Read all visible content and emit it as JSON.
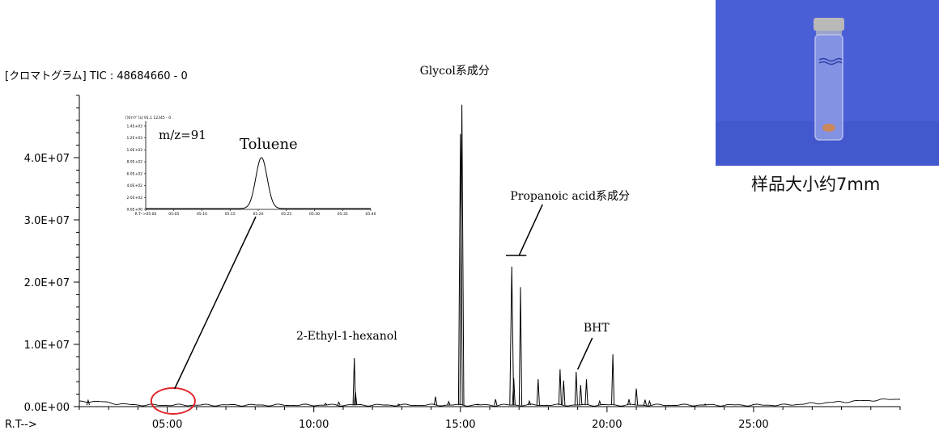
{
  "chart_data": {
    "type": "line",
    "title": "[クロマトグラム] TIC : 48684660 - 0",
    "xlabel": "R.T-->",
    "ylabel": "",
    "xlim": [
      2.0,
      30.0
    ],
    "ylim": [
      0,
      50000000
    ],
    "x_ticks": [
      5,
      10,
      15,
      20,
      25
    ],
    "x_tick_labels": [
      "05:00",
      "10:00",
      "15:00",
      "20:00",
      "25:00"
    ],
    "y_ticks": [
      0,
      10000000,
      20000000,
      30000000,
      40000000
    ],
    "y_tick_labels": [
      "0.0E+00",
      "1.0E+07",
      "2.0E+07",
      "3.0E+07",
      "4.0E+07"
    ],
    "peaks": [
      {
        "rt": 2.3,
        "height": 1000000
      },
      {
        "rt": 10.4,
        "height": 500000
      },
      {
        "rt": 10.85,
        "height": 700000
      },
      {
        "rt": 11.38,
        "height": 7800000
      },
      {
        "rt": 11.42,
        "height": 2400000
      },
      {
        "rt": 12.9,
        "height": 400000
      },
      {
        "rt": 14.15,
        "height": 1600000
      },
      {
        "rt": 14.6,
        "height": 800000
      },
      {
        "rt": 15.0,
        "height": 43800000
      },
      {
        "rt": 15.05,
        "height": 48500000
      },
      {
        "rt": 15.6,
        "height": 400000
      },
      {
        "rt": 16.2,
        "height": 1200000
      },
      {
        "rt": 16.75,
        "height": 22500000
      },
      {
        "rt": 16.82,
        "height": 4600000
      },
      {
        "rt": 17.05,
        "height": 19200000
      },
      {
        "rt": 17.35,
        "height": 900000
      },
      {
        "rt": 17.65,
        "height": 4400000
      },
      {
        "rt": 18.4,
        "height": 6000000
      },
      {
        "rt": 18.52,
        "height": 4200000
      },
      {
        "rt": 18.95,
        "height": 5600000
      },
      {
        "rt": 19.1,
        "height": 3500000
      },
      {
        "rt": 19.3,
        "height": 4400000
      },
      {
        "rt": 19.75,
        "height": 900000
      },
      {
        "rt": 20.2,
        "height": 8400000
      },
      {
        "rt": 20.75,
        "height": 1200000
      },
      {
        "rt": 21.0,
        "height": 2900000
      },
      {
        "rt": 21.3,
        "height": 1100000
      },
      {
        "rt": 21.45,
        "height": 900000
      },
      {
        "rt": 23.35,
        "height": 400000
      }
    ],
    "annotations": [
      {
        "label": "Glycol系成分",
        "rt": 15.05
      },
      {
        "label": "Propanoic acid系成分",
        "rt": 16.9
      },
      {
        "label": "BHT",
        "rt": 19.0
      },
      {
        "label": "2-Ethyl-1-hexanol",
        "rt": 11.4
      },
      {
        "label": "Toluene",
        "rt": 5.2
      }
    ],
    "inset": {
      "title": "m/z=91",
      "label": "Toluene",
      "header": "[ｸﾛﾏﾄｸﾞﾗﾑ] 91.1 12345 - 0",
      "y_tick_labels": [
        "1.4E+03",
        "1.2E+03",
        "1.0E+03",
        "8.0E+02",
        "6.0E+02",
        "4.0E+02",
        "2.0E+02",
        "0.0E+00"
      ],
      "x_tick_labels": [
        "R.T-->05:00",
        "05:05",
        "05:10",
        "05:15",
        "05:20",
        "05:25",
        "05:30",
        "05:35",
        "05:40"
      ]
    }
  },
  "photo": {
    "caption": "样品大小约7mm",
    "background_color": "#4a5fd6",
    "cap_color": "#b9b9b9"
  }
}
